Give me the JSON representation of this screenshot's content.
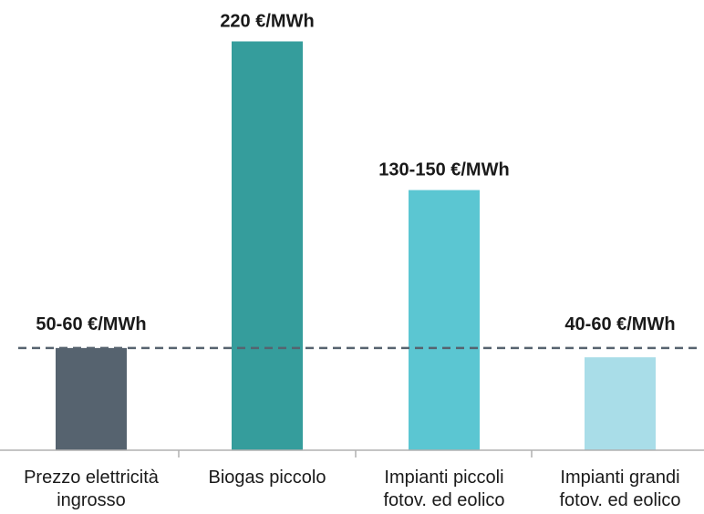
{
  "chart_data": {
    "type": "bar",
    "title": "",
    "xlabel": "",
    "ylabel": "",
    "ylim": [
      0,
      232
    ],
    "unit": "€/MWh",
    "categories": [
      [
        "Prezzo elettricità",
        "ingrosso"
      ],
      [
        "Biogas piccolo"
      ],
      [
        "Impianti piccoli",
        "fotov. ed eolico"
      ],
      [
        "Impianti grandi",
        "fotov. ed eolico"
      ]
    ],
    "values": [
      55,
      220,
      140,
      50
    ],
    "value_labels": [
      "50-60 €/MWh",
      "220 €/MWh",
      "130-150 €/MWh",
      "40-60 €/MWh"
    ],
    "colors": [
      "#56636f",
      "#359d9c",
      "#5bc6d2",
      "#a9dde8"
    ],
    "reference_line": {
      "value": 55,
      "style": "dashed",
      "color": "#56636f"
    },
    "grid": false,
    "legend": "none"
  }
}
